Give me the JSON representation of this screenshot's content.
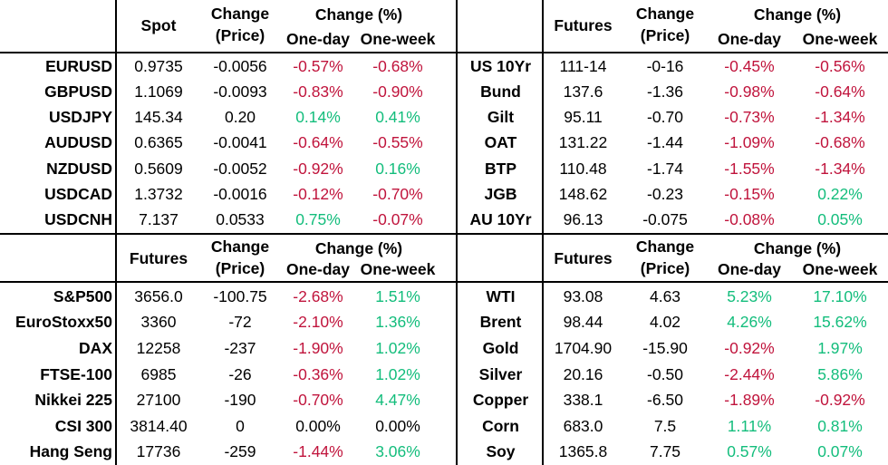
{
  "colors": {
    "positive": "#13BD7C",
    "negative": "#C0143C",
    "neutral": "#000000",
    "grid_line": "#000000"
  },
  "quadrants": [
    {
      "id": "fx",
      "headers": {
        "value": "Spot",
        "change_line1": "Change",
        "change_line2": "(Price)",
        "pct": "Change (%)",
        "one_day": "One-day",
        "one_week": "One-week"
      },
      "rows": [
        {
          "label": "EURUSD",
          "value": "0.9735",
          "change": "-0.0056",
          "one_day": "-0.57%",
          "one_week": "-0.68%"
        },
        {
          "label": "GBPUSD",
          "value": "1.1069",
          "change": "-0.0093",
          "one_day": "-0.83%",
          "one_week": "-0.90%"
        },
        {
          "label": "USDJPY",
          "value": "145.34",
          "change": "0.20",
          "one_day": "0.14%",
          "one_week": "0.41%"
        },
        {
          "label": "AUDUSD",
          "value": "0.6365",
          "change": "-0.0041",
          "one_day": "-0.64%",
          "one_week": "-0.55%"
        },
        {
          "label": "NZDUSD",
          "value": "0.5609",
          "change": "-0.0052",
          "one_day": "-0.92%",
          "one_week": "0.16%"
        },
        {
          "label": "USDCAD",
          "value": "1.3732",
          "change": "-0.0016",
          "one_day": "-0.12%",
          "one_week": "-0.70%"
        },
        {
          "label": "USDCNH",
          "value": "7.137",
          "change": "0.0533",
          "one_day": "0.75%",
          "one_week": "-0.07%"
        }
      ]
    },
    {
      "id": "bonds",
      "headers": {
        "value": "Futures",
        "change_line1": "Change",
        "change_line2": "(Price)",
        "pct": "Change (%)",
        "one_day": "One-day",
        "one_week": "One-week"
      },
      "rows": [
        {
          "label": "US 10Yr",
          "value": "111-14",
          "change": "-0-16",
          "one_day": "-0.45%",
          "one_week": "-0.56%"
        },
        {
          "label": "Bund",
          "value": "137.6",
          "change": "-1.36",
          "one_day": "-0.98%",
          "one_week": "-0.64%"
        },
        {
          "label": "Gilt",
          "value": "95.11",
          "change": "-0.70",
          "one_day": "-0.73%",
          "one_week": "-1.34%"
        },
        {
          "label": "OAT",
          "value": "131.22",
          "change": "-1.44",
          "one_day": "-1.09%",
          "one_week": "-0.68%"
        },
        {
          "label": "BTP",
          "value": "110.48",
          "change": "-1.74",
          "one_day": "-1.55%",
          "one_week": "-1.34%"
        },
        {
          "label": "JGB",
          "value": "148.62",
          "change": "-0.23",
          "one_day": "-0.15%",
          "one_week": "0.22%"
        },
        {
          "label": "AU 10Yr",
          "value": "96.13",
          "change": "-0.075",
          "one_day": "-0.08%",
          "one_week": "0.05%"
        }
      ]
    },
    {
      "id": "equities",
      "headers": {
        "value": "Futures",
        "change_line1": "Change",
        "change_line2": "(Price)",
        "pct": "Change (%)",
        "one_day": "One-day",
        "one_week": "One-week"
      },
      "rows": [
        {
          "label": "S&P500",
          "value": "3656.0",
          "change": "-100.75",
          "one_day": "-2.68%",
          "one_week": "1.51%"
        },
        {
          "label": "EuroStoxx50",
          "value": "3360",
          "change": "-72",
          "one_day": "-2.10%",
          "one_week": "1.36%"
        },
        {
          "label": "DAX",
          "value": "12258",
          "change": "-237",
          "one_day": "-1.90%",
          "one_week": "1.02%"
        },
        {
          "label": "FTSE-100",
          "value": "6985",
          "change": "-26",
          "one_day": "-0.36%",
          "one_week": "1.02%"
        },
        {
          "label": "Nikkei 225",
          "value": "27100",
          "change": "-190",
          "one_day": "-0.70%",
          "one_week": "4.47%"
        },
        {
          "label": "CSI 300",
          "value": "3814.40",
          "change": "0",
          "one_day": "0.00%",
          "one_week": "0.00%"
        },
        {
          "label": "Hang Seng",
          "value": "17736",
          "change": "-259",
          "one_day": "-1.44%",
          "one_week": "3.06%"
        }
      ]
    },
    {
      "id": "commodities",
      "headers": {
        "value": "Futures",
        "change_line1": "Change",
        "change_line2": "(Price)",
        "pct": "Change (%)",
        "one_day": "One-day",
        "one_week": "One-week"
      },
      "rows": [
        {
          "label": "WTI",
          "value": "93.08",
          "change": "4.63",
          "one_day": "5.23%",
          "one_week": "17.10%"
        },
        {
          "label": "Brent",
          "value": "98.44",
          "change": "4.02",
          "one_day": "4.26%",
          "one_week": "15.62%"
        },
        {
          "label": "Gold",
          "value": "1704.90",
          "change": "-15.90",
          "one_day": "-0.92%",
          "one_week": "1.97%"
        },
        {
          "label": "Silver",
          "value": "20.16",
          "change": "-0.50",
          "one_day": "-2.44%",
          "one_week": "5.86%"
        },
        {
          "label": "Copper",
          "value": "338.1",
          "change": "-6.50",
          "one_day": "-1.89%",
          "one_week": "-0.92%"
        },
        {
          "label": "Corn",
          "value": "683.0",
          "change": "7.5",
          "one_day": "1.11%",
          "one_week": "0.81%"
        },
        {
          "label": "Soy",
          "value": "1365.8",
          "change": "7.75",
          "one_day": "0.57%",
          "one_week": "0.07%"
        }
      ]
    }
  ]
}
